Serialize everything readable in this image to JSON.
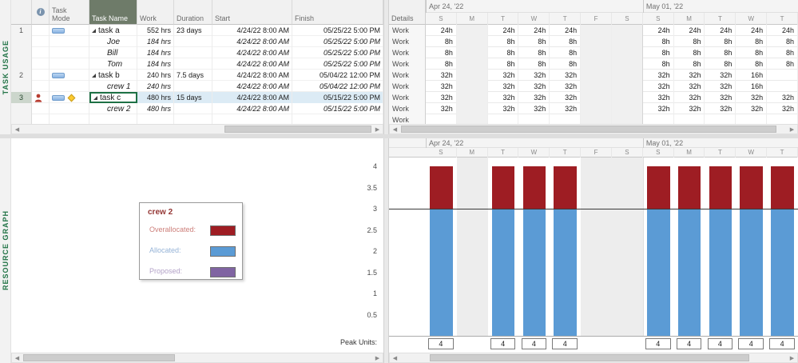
{
  "panes": {
    "top_view_label": "TASK USAGE",
    "bottom_view_label": "RESOURCE GRAPH"
  },
  "table": {
    "columns": {
      "info": "i",
      "task_mode": "Task Mode",
      "task_name": "Task Name",
      "work": "Work",
      "duration": "Duration",
      "start": "Start",
      "finish": "Finish"
    },
    "rows": [
      {
        "id": "1",
        "type": "task",
        "name": "task a",
        "work": "552 hrs",
        "duration": "23 days",
        "start": "4/24/22 8:00 AM",
        "finish": "05/25/22 5:00 PM",
        "details": "Work",
        "selected": false,
        "overallocated": false,
        "warning": false,
        "timephased": [
          "24h",
          "",
          "24h",
          "24h",
          "24h",
          "",
          "",
          "24h",
          "24h",
          "24h",
          "24h",
          "24h"
        ]
      },
      {
        "id": "",
        "type": "assignment",
        "name": "Joe",
        "work": "184 hrs",
        "duration": "",
        "start": "4/24/22 8:00 AM",
        "finish": "05/25/22 5:00 PM",
        "details": "Work",
        "selected": false,
        "overallocated": false,
        "warning": false,
        "timephased": [
          "8h",
          "",
          "8h",
          "8h",
          "8h",
          "",
          "",
          "8h",
          "8h",
          "8h",
          "8h",
          "8h"
        ]
      },
      {
        "id": "",
        "type": "assignment",
        "name": "Bill",
        "work": "184 hrs",
        "duration": "",
        "start": "4/24/22 8:00 AM",
        "finish": "05/25/22 5:00 PM",
        "details": "Work",
        "selected": false,
        "overallocated": false,
        "warning": false,
        "timephased": [
          "8h",
          "",
          "8h",
          "8h",
          "8h",
          "",
          "",
          "8h",
          "8h",
          "8h",
          "8h",
          "8h"
        ]
      },
      {
        "id": "",
        "type": "assignment",
        "name": "Tom",
        "work": "184 hrs",
        "duration": "",
        "start": "4/24/22 8:00 AM",
        "finish": "05/25/22 5:00 PM",
        "details": "Work",
        "selected": false,
        "overallocated": false,
        "warning": false,
        "timephased": [
          "8h",
          "",
          "8h",
          "8h",
          "8h",
          "",
          "",
          "8h",
          "8h",
          "8h",
          "8h",
          "8h"
        ]
      },
      {
        "id": "2",
        "type": "task",
        "name": "task b",
        "work": "240 hrs",
        "duration": "7.5 days",
        "start": "4/24/22 8:00 AM",
        "finish": "05/04/22 12:00 PM",
        "details": "Work",
        "selected": false,
        "overallocated": false,
        "warning": false,
        "timephased": [
          "32h",
          "",
          "32h",
          "32h",
          "32h",
          "",
          "",
          "32h",
          "32h",
          "32h",
          "16h",
          ""
        ]
      },
      {
        "id": "",
        "type": "assignment",
        "name": "crew 1",
        "work": "240 hrs",
        "duration": "",
        "start": "4/24/22 8:00 AM",
        "finish": "05/04/22 12:00 PM",
        "details": "Work",
        "selected": false,
        "overallocated": false,
        "warning": false,
        "timephased": [
          "32h",
          "",
          "32h",
          "32h",
          "32h",
          "",
          "",
          "32h",
          "32h",
          "32h",
          "16h",
          ""
        ]
      },
      {
        "id": "3",
        "type": "task",
        "name": "task c",
        "work": "480 hrs",
        "duration": "15 days",
        "start": "4/24/22 8:00 AM",
        "finish": "05/15/22 5:00 PM",
        "details": "Work",
        "selected": true,
        "overallocated": true,
        "warning": true,
        "timephased": [
          "32h",
          "",
          "32h",
          "32h",
          "32h",
          "",
          "",
          "32h",
          "32h",
          "32h",
          "32h",
          "32h"
        ]
      },
      {
        "id": "",
        "type": "assignment",
        "name": "crew 2",
        "work": "480 hrs",
        "duration": "",
        "start": "4/24/22 8:00 AM",
        "finish": "05/15/22 5:00 PM",
        "details": "Work",
        "selected": false,
        "overallocated": false,
        "warning": false,
        "timephased": [
          "32h",
          "",
          "32h",
          "32h",
          "32h",
          "",
          "",
          "32h",
          "32h",
          "32h",
          "32h",
          "32h"
        ]
      },
      {
        "id": "",
        "type": "empty",
        "name": "",
        "work": "",
        "duration": "",
        "start": "",
        "finish": "",
        "details": "Work",
        "selected": false,
        "overallocated": false,
        "warning": false,
        "timephased": [
          "",
          "",
          "",
          "",
          "",
          "",
          "",
          "",
          "",
          "",
          "",
          ""
        ]
      }
    ]
  },
  "timescale": {
    "details_header": "Details",
    "weeks": [
      {
        "label": "Apr 24, '22",
        "days": [
          "S",
          "M",
          "T",
          "W",
          "T",
          "F",
          "S"
        ]
      },
      {
        "label": "May 01, '22",
        "days": [
          "S",
          "M",
          "T",
          "W",
          "T"
        ]
      }
    ],
    "nonworking_cols": [
      1,
      5,
      6
    ]
  },
  "chart_data": {
    "type": "bar",
    "title": "Resource Graph for crew 2 (peak units per day)",
    "categories": [
      "S",
      "M",
      "T",
      "W",
      "T",
      "F",
      "S",
      "S",
      "M",
      "T",
      "W",
      "T"
    ],
    "series": [
      {
        "name": "Allocated",
        "color": "#5b9bd5",
        "values": [
          3,
          0,
          3,
          3,
          3,
          0,
          0,
          3,
          3,
          3,
          3,
          3
        ]
      },
      {
        "name": "Overallocated",
        "color": "#9e1d23",
        "values": [
          1,
          0,
          1,
          1,
          1,
          0,
          0,
          1,
          1,
          1,
          1,
          1
        ]
      }
    ],
    "peak_units": [
      "4",
      "",
      "4",
      "4",
      "4",
      "",
      "",
      "4",
      "4",
      "4",
      "4",
      "4"
    ],
    "peak_units_label": "Peak Units:",
    "y_ticks": [
      4,
      3.5,
      3,
      2.5,
      2,
      1.5,
      1,
      0.5
    ],
    "ylim": [
      0,
      4
    ],
    "max_units_line": 3,
    "legend_position": "left-pane",
    "grid": false
  },
  "legend": {
    "title": "crew 2",
    "title_color": "#943634",
    "items": [
      {
        "label": "Overallocated:",
        "text_color": "#cd7f7a",
        "swatch": "#9e1d23"
      },
      {
        "label": "Allocated:",
        "text_color": "#95b3d7",
        "swatch": "#5b9bd5"
      },
      {
        "label": "Proposed:",
        "text_color": "#b2a1c7",
        "swatch": "#8064a2"
      }
    ]
  }
}
